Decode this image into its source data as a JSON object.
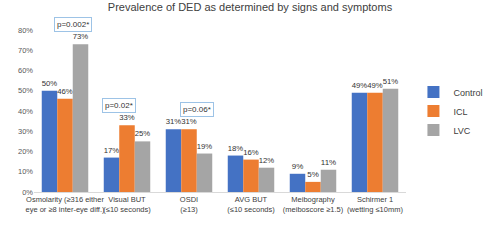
{
  "chart_data": {
    "type": "bar",
    "title": "Prevalence of DED as determined by signs and symptoms",
    "categories": [
      "Osmolarity (≥316 either\neye or ≥8 inter-eye diff.)",
      "Visual BUT\n(≤10 seconds)",
      "OSDI\n(≥13)",
      "AVG BUT\n(≤10 seconds)",
      "Meibography\n(meiboscore ≥1.5)",
      "Schirmer 1\n(wetting ≤10mm)"
    ],
    "series": [
      {
        "name": "Control",
        "color": "#4472c4",
        "values": [
          50,
          17,
          31,
          18,
          9,
          49
        ],
        "value_labels": [
          "50%",
          "17%",
          "31%",
          "18%",
          "9%",
          "49%"
        ]
      },
      {
        "name": "ICL",
        "color": "#ed7d31",
        "values": [
          46,
          33,
          31,
          16,
          5,
          49
        ],
        "value_labels": [
          "46%",
          "33%",
          "31%",
          "16%",
          "5%",
          "49%"
        ]
      },
      {
        "name": "LVC",
        "color": "#a5a5a5",
        "values": [
          73,
          25,
          19,
          12,
          11,
          51
        ],
        "value_labels": [
          "73%",
          "25%",
          "19%",
          "12%",
          "11%",
          "51%"
        ]
      }
    ],
    "annotations": [
      {
        "text": "p=0.002*",
        "category": "Osmolarity (≥316 either\neye or ≥8 inter-eye diff.)",
        "between": [
          "ICL",
          "LVC"
        ]
      },
      {
        "text": "p=0.02*",
        "category": "Visual BUT\n(≤10 seconds)",
        "between": [
          "Control",
          "ICL"
        ]
      },
      {
        "text": "p=0.06*",
        "category": "OSDI\n(≥13)",
        "between": [
          "ICL",
          "LVC"
        ]
      }
    ],
    "ylim": [
      0,
      80
    ],
    "yticks": [
      {
        "value": 0,
        "label": "0%"
      },
      {
        "value": 10,
        "label": "10%"
      },
      {
        "value": 20,
        "label": "20%"
      },
      {
        "value": 30,
        "label": "30%"
      },
      {
        "value": 40,
        "label": "40%"
      },
      {
        "value": 50,
        "label": "50%"
      },
      {
        "value": 60,
        "label": "60%"
      },
      {
        "value": 70,
        "label": "70%"
      },
      {
        "value": 80,
        "label": "80%"
      }
    ],
    "grid": false,
    "legend": "right",
    "data_labels": true
  }
}
